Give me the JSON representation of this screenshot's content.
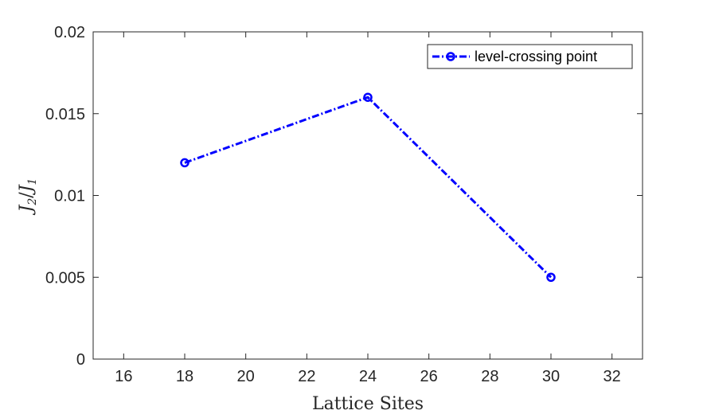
{
  "chart_data": {
    "type": "line",
    "xlabel": "Lattice Sites",
    "ylabel": {
      "main_left": "J",
      "sub_left": "2",
      "slash": "/",
      "main_right": "J",
      "sub_right": "1"
    },
    "xlim": [
      15,
      33
    ],
    "ylim": [
      0,
      0.02
    ],
    "x_ticks": [
      "16",
      "18",
      "20",
      "22",
      "24",
      "26",
      "28",
      "30",
      "32"
    ],
    "x_tick_values": [
      16,
      18,
      20,
      22,
      24,
      26,
      28,
      30,
      32
    ],
    "y_ticks": [
      "0",
      "0.005",
      "0.01",
      "0.015",
      "0.02"
    ],
    "y_tick_values": [
      0,
      0.005,
      0.01,
      0.015,
      0.02
    ],
    "grid": false,
    "legend_position": "top-right",
    "series": [
      {
        "name": "level-crossing point",
        "x": [
          18,
          24,
          30
        ],
        "y": [
          0.012,
          0.016,
          0.005
        ],
        "color": "#0000ff",
        "line_style": "dash-dot",
        "marker": "circle"
      }
    ]
  }
}
